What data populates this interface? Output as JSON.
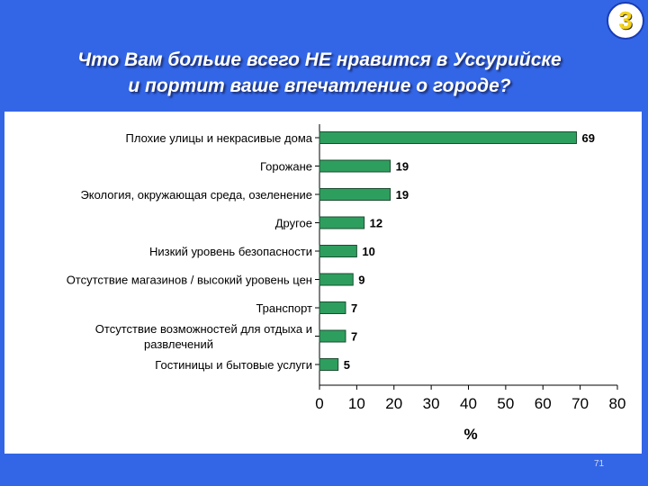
{
  "slide": {
    "title_line1": "Что Вам больше всего НЕ нравится в Уссурийске",
    "title_line2": "и портит ваше впечатление о городе?",
    "badge": "3",
    "page_number": "71",
    "colors": {
      "background": "#3366e6",
      "bar_fill": "#2e9e5e",
      "bar_stroke": "#1b4d30",
      "badge_text": "#f4d21a"
    }
  },
  "chart_data": {
    "type": "bar",
    "orientation": "horizontal",
    "categories": [
      [
        "Плохие улицы и некрасивые дома"
      ],
      [
        "Горожане"
      ],
      [
        "Экология, окружающая среда, озеленение"
      ],
      [
        "Другое"
      ],
      [
        "Низкий уровень безопасности"
      ],
      [
        "Отсутствие магазинов / высокий уровень цен"
      ],
      [
        "Транспорт"
      ],
      [
        "Отсутствие возможностей для отдыха и",
        "развлечений"
      ],
      [
        "Гостиницы и бытовые услуги"
      ]
    ],
    "values": [
      69,
      19,
      19,
      12,
      10,
      9,
      7,
      7,
      5
    ],
    "xlabel": "%",
    "xlim": [
      0,
      80
    ],
    "xticks": [
      0,
      10,
      20,
      30,
      40,
      50,
      60,
      70,
      80
    ],
    "grid": false
  }
}
